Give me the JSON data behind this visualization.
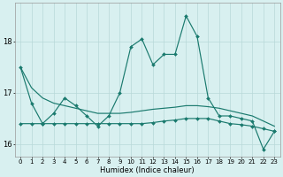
{
  "xlabel": "Humidex (Indice chaleur)",
  "x": [
    0,
    1,
    2,
    3,
    4,
    5,
    6,
    7,
    8,
    9,
    10,
    11,
    12,
    13,
    14,
    15,
    16,
    17,
    18,
    19,
    20,
    21,
    22,
    23
  ],
  "line_main": [
    17.5,
    16.8,
    16.4,
    16.6,
    16.9,
    16.75,
    16.55,
    16.35,
    16.55,
    17.0,
    17.9,
    18.05,
    17.55,
    17.75,
    17.75,
    18.5,
    18.1,
    16.9,
    16.55,
    16.55,
    16.5,
    16.45,
    15.9,
    16.25
  ],
  "line_flat": [
    16.4,
    16.4,
    16.4,
    16.4,
    16.4,
    16.4,
    16.4,
    16.4,
    16.4,
    16.4,
    16.4,
    16.4,
    16.42,
    16.45,
    16.47,
    16.5,
    16.5,
    16.5,
    16.45,
    16.4,
    16.38,
    16.35,
    16.3,
    16.25
  ],
  "line_diag": [
    17.5,
    17.1,
    16.9,
    16.8,
    16.75,
    16.7,
    16.65,
    16.6,
    16.6,
    16.6,
    16.62,
    16.65,
    16.68,
    16.7,
    16.72,
    16.75,
    16.75,
    16.73,
    16.7,
    16.65,
    16.6,
    16.55,
    16.45,
    16.35
  ],
  "line_color": "#1a7a6e",
  "bg_color": "#d8f0f0",
  "grid_color": "#b8d8d8",
  "ylim": [
    15.75,
    18.75
  ],
  "yticks": [
    16,
    17,
    18
  ],
  "xlim": [
    -0.5,
    23.5
  ],
  "figsize": [
    3.2,
    2.0
  ],
  "dpi": 100
}
